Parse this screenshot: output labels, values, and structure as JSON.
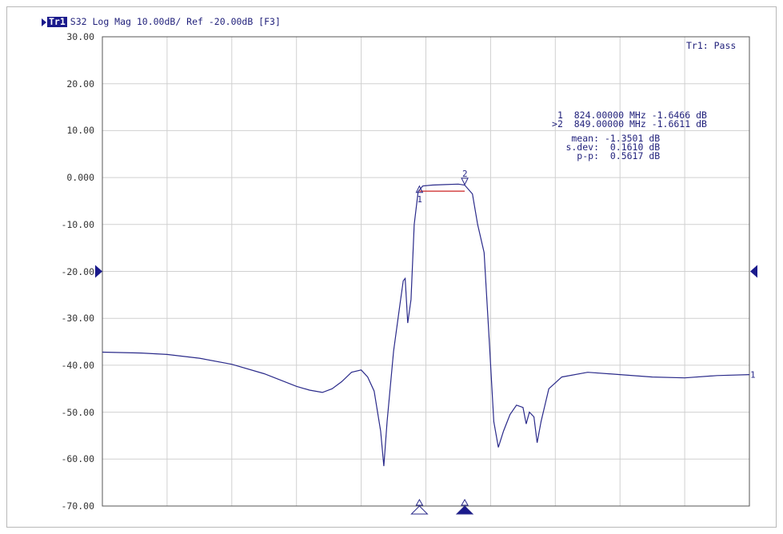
{
  "header": {
    "trace_label": "Tr1",
    "text": "S32 Log Mag 10.00dB/ Ref -20.00dB [F3]"
  },
  "status": "Tr1: Pass",
  "markers": [
    {
      "id": "1",
      "prefix": " ",
      "freq": "824.00000 MHz",
      "value": "-1.6466 dB"
    },
    {
      "id": "2",
      "prefix": ">",
      "freq": "849.00000 MHz",
      "value": "-1.6611 dB"
    }
  ],
  "stats": {
    "mean_label": "mean:",
    "mean_value": "-1.3501 dB",
    "sdev_label": "s.dev:",
    "sdev_value": "0.1610 dB",
    "pp_label": "p-p:",
    "pp_value": "0.5617 dB"
  },
  "colors": {
    "trace": "#2a2a8a",
    "grid": "#d0d0d0",
    "border": "#555555",
    "limit": "#cc2222",
    "accent": "#1a1a8c"
  },
  "chart_data": {
    "type": "line",
    "title": "S32 Log Mag 10.00dB/ Ref -20.00dB [F3]",
    "ylim": [
      -70,
      30
    ],
    "yticks": [
      "30.00",
      "20.00",
      "10.00",
      "0.000",
      "-10.00",
      "-20.00",
      "-30.00",
      "-40.00",
      "-50.00",
      "-60.00",
      "-70.00"
    ],
    "ref_level": -20,
    "x_divisions": 10,
    "grid": true,
    "series": [
      {
        "name": "Tr1",
        "points": [
          [
            0,
            -37.2
          ],
          [
            0.6,
            -37.4
          ],
          [
            1.0,
            -37.7
          ],
          [
            1.5,
            -38.5
          ],
          [
            2.0,
            -39.8
          ],
          [
            2.5,
            -41.8
          ],
          [
            3.0,
            -44.5
          ],
          [
            3.2,
            -45.3
          ],
          [
            3.4,
            -45.8
          ],
          [
            3.55,
            -45.0
          ],
          [
            3.7,
            -43.5
          ],
          [
            3.85,
            -41.5
          ],
          [
            4.0,
            -41.0
          ],
          [
            4.1,
            -42.5
          ],
          [
            4.2,
            -45.5
          ],
          [
            4.3,
            -54.0
          ],
          [
            4.35,
            -61.5
          ],
          [
            4.4,
            -52.0
          ],
          [
            4.5,
            -37.0
          ],
          [
            4.6,
            -27.0
          ],
          [
            4.65,
            -22.0
          ],
          [
            4.68,
            -21.5
          ],
          [
            4.72,
            -31.0
          ],
          [
            4.77,
            -26.0
          ],
          [
            4.82,
            -10.0
          ],
          [
            4.88,
            -3.0
          ],
          [
            4.95,
            -1.8
          ],
          [
            5.1,
            -1.6
          ],
          [
            5.3,
            -1.5
          ],
          [
            5.5,
            -1.4
          ],
          [
            5.6,
            -1.6
          ],
          [
            5.72,
            -3.5
          ],
          [
            5.8,
            -10.0
          ],
          [
            5.9,
            -16.0
          ],
          [
            5.98,
            -35.0
          ],
          [
            6.05,
            -52.0
          ],
          [
            6.12,
            -57.5
          ],
          [
            6.2,
            -54.0
          ],
          [
            6.3,
            -50.5
          ],
          [
            6.4,
            -48.5
          ],
          [
            6.5,
            -49.0
          ],
          [
            6.55,
            -52.5
          ],
          [
            6.6,
            -50.0
          ],
          [
            6.67,
            -51.0
          ],
          [
            6.72,
            -56.5
          ],
          [
            6.78,
            -52.0
          ],
          [
            6.9,
            -45.0
          ],
          [
            7.1,
            -42.5
          ],
          [
            7.5,
            -41.5
          ],
          [
            8.0,
            -42.0
          ],
          [
            8.5,
            -42.5
          ],
          [
            9.0,
            -42.7
          ],
          [
            9.5,
            -42.2
          ],
          [
            10.0,
            -42.0
          ]
        ]
      }
    ],
    "markers": [
      {
        "id": "1",
        "x": 4.9,
        "y": -1.6466
      },
      {
        "id": "2",
        "x": 5.6,
        "y": -1.6611
      }
    ],
    "stats_range": [
      4.9,
      5.6
    ],
    "end_label": "1"
  }
}
